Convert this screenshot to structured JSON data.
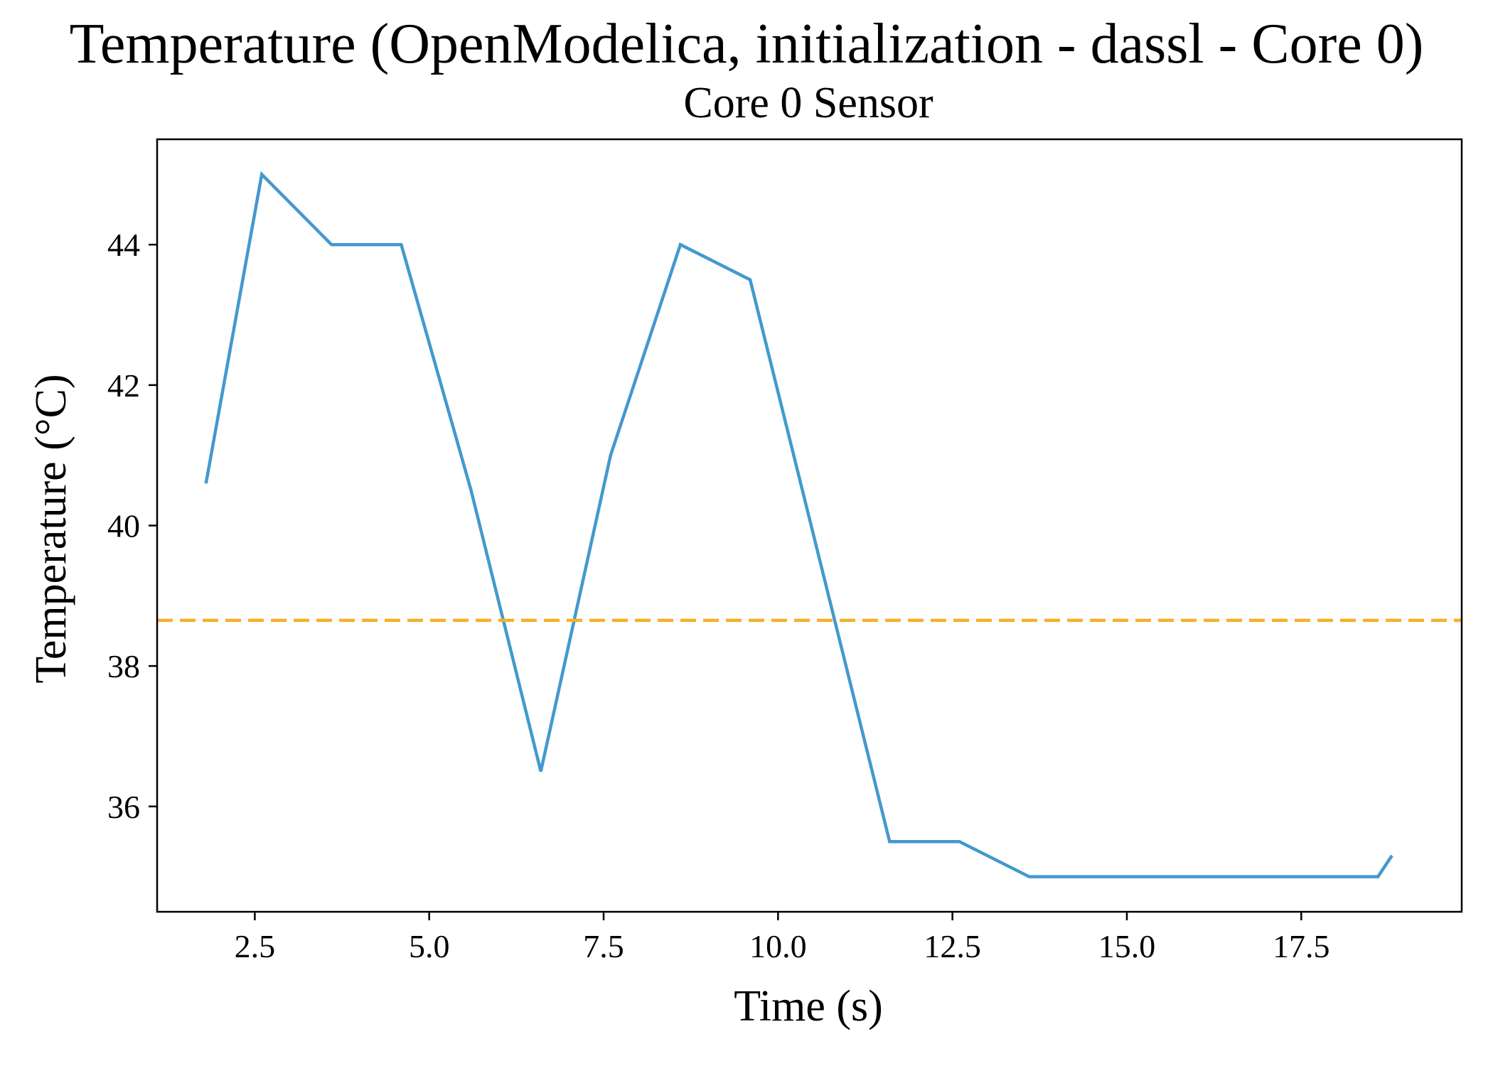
{
  "chart_data": {
    "type": "line",
    "title": "Temperature (OpenModelica, initialization - dassl - Core 0)",
    "subtitle": "Core 0 Sensor",
    "xlabel": "Time (s)",
    "ylabel": "Temperature (°C)",
    "xlim": [
      1.1,
      19.8
    ],
    "ylim": [
      34.5,
      45.5
    ],
    "xticks": [
      2.5,
      5.0,
      7.5,
      10.0,
      12.5,
      15.0,
      17.5
    ],
    "xtick_labels": [
      "2.5",
      "5.0",
      "7.5",
      "10.0",
      "12.5",
      "15.0",
      "17.5"
    ],
    "yticks": [
      36,
      38,
      40,
      42,
      44
    ],
    "ytick_labels": [
      "36",
      "38",
      "40",
      "42",
      "44"
    ],
    "grid": false,
    "series": [
      {
        "color": "#4499cc",
        "style": "solid",
        "x": [
          1.8,
          2.6,
          3.6,
          4.6,
          5.6,
          6.6,
          7.6,
          8.6,
          9.6,
          10.6,
          11.6,
          12.6,
          13.6,
          14.6,
          15.6,
          16.6,
          17.6,
          18.6,
          18.8
        ],
        "y": [
          40.6,
          45.0,
          44.0,
          44.0,
          40.5,
          36.5,
          41.0,
          44.0,
          43.5,
          39.5,
          35.5,
          35.5,
          35.0,
          35.0,
          35.0,
          35.0,
          35.0,
          35.0,
          35.3
        ]
      },
      {
        "color": "#f5b027",
        "style": "dashed",
        "constant_y": 38.65
      }
    ]
  }
}
